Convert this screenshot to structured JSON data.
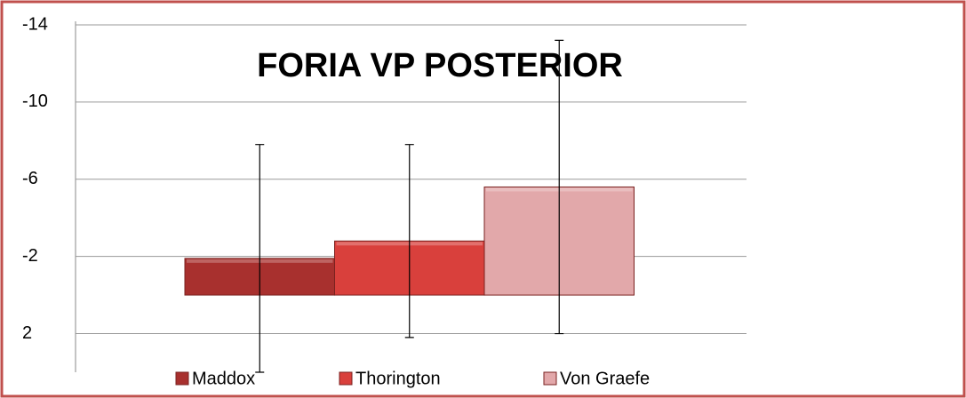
{
  "chart_data": {
    "type": "bar",
    "title": "FORIA VP POSTERIOR",
    "inverted_y": true,
    "ylim": [
      -14,
      4
    ],
    "yticks": [
      -14,
      -10,
      -6,
      -2,
      2
    ],
    "grid": true,
    "series": [
      {
        "name": "Maddox",
        "color": "#a8302e",
        "values": [
          -1.9
        ],
        "errors": [
          5.9
        ]
      },
      {
        "name": "Thorington",
        "color": "#d9403c",
        "values": [
          -2.8
        ],
        "errors": [
          5.0
        ]
      },
      {
        "name": "Von Graefe",
        "color": "#e2a8aa",
        "values": [
          -5.6
        ],
        "errors": [
          7.6
        ]
      }
    ]
  }
}
